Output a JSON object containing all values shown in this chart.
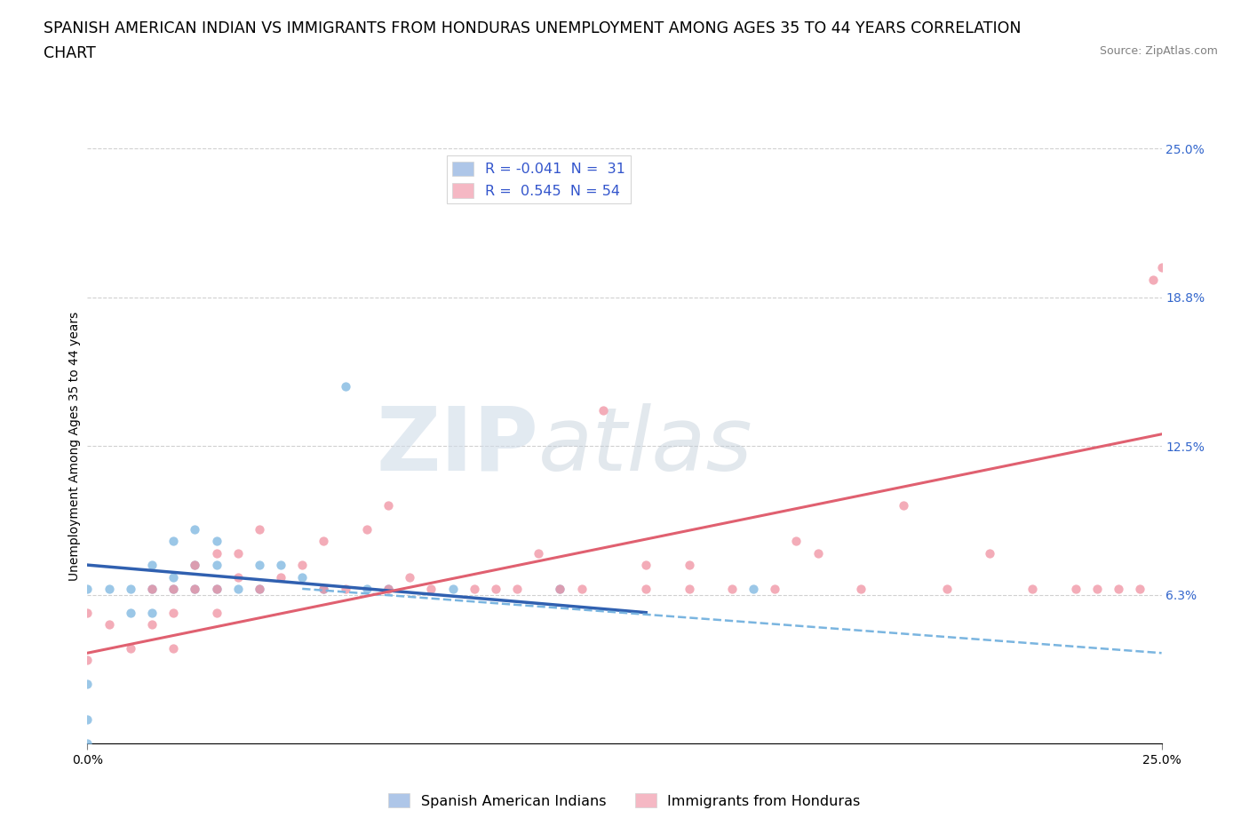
{
  "title_line1": "SPANISH AMERICAN INDIAN VS IMMIGRANTS FROM HONDURAS UNEMPLOYMENT AMONG AGES 35 TO 44 YEARS CORRELATION",
  "title_line2": "CHART",
  "source_text": "Source: ZipAtlas.com",
  "ylabel": "Unemployment Among Ages 35 to 44 years",
  "xlim": [
    0.0,
    0.25
  ],
  "ylim": [
    0.0,
    0.25
  ],
  "ytick_values": [
    0.0625,
    0.125,
    0.1875,
    0.25
  ],
  "ytick_labels": [
    "6.3%",
    "12.5%",
    "18.8%",
    "25.0%"
  ],
  "xtick_values": [
    0.0,
    0.25
  ],
  "xtick_labels": [
    "0.0%",
    "25.0%"
  ],
  "legend_entries": [
    {
      "label": "R = -0.041  N =  31",
      "color": "#aec6e8"
    },
    {
      "label": "R =  0.545  N = 54",
      "color": "#f5b8c4"
    }
  ],
  "legend_bottom": [
    "Spanish American Indians",
    "Immigrants from Honduras"
  ],
  "legend_colors_bottom": [
    "#aec6e8",
    "#f5b8c4"
  ],
  "watermark_zip": "ZIP",
  "watermark_atlas": "atlas",
  "blue_scatter_x": [
    0.0,
    0.0,
    0.0,
    0.0,
    0.005,
    0.01,
    0.01,
    0.015,
    0.015,
    0.015,
    0.02,
    0.02,
    0.02,
    0.025,
    0.025,
    0.025,
    0.03,
    0.03,
    0.03,
    0.035,
    0.04,
    0.04,
    0.045,
    0.05,
    0.055,
    0.06,
    0.065,
    0.07,
    0.085,
    0.11,
    0.155
  ],
  "blue_scatter_y": [
    0.0,
    0.01,
    0.025,
    0.065,
    0.065,
    0.055,
    0.065,
    0.055,
    0.065,
    0.075,
    0.065,
    0.07,
    0.085,
    0.065,
    0.075,
    0.09,
    0.065,
    0.075,
    0.085,
    0.065,
    0.065,
    0.075,
    0.075,
    0.07,
    0.065,
    0.15,
    0.065,
    0.065,
    0.065,
    0.065,
    0.065
  ],
  "pink_scatter_x": [
    0.0,
    0.0,
    0.005,
    0.01,
    0.015,
    0.015,
    0.02,
    0.02,
    0.02,
    0.025,
    0.025,
    0.03,
    0.03,
    0.03,
    0.035,
    0.035,
    0.04,
    0.04,
    0.045,
    0.05,
    0.055,
    0.055,
    0.06,
    0.065,
    0.07,
    0.07,
    0.075,
    0.08,
    0.09,
    0.095,
    0.1,
    0.105,
    0.11,
    0.115,
    0.12,
    0.13,
    0.13,
    0.14,
    0.14,
    0.15,
    0.16,
    0.165,
    0.17,
    0.18,
    0.19,
    0.2,
    0.21,
    0.22,
    0.23,
    0.235,
    0.24,
    0.245,
    0.248,
    0.25
  ],
  "pink_scatter_y": [
    0.035,
    0.055,
    0.05,
    0.04,
    0.05,
    0.065,
    0.04,
    0.055,
    0.065,
    0.065,
    0.075,
    0.055,
    0.065,
    0.08,
    0.07,
    0.08,
    0.065,
    0.09,
    0.07,
    0.075,
    0.065,
    0.085,
    0.065,
    0.09,
    0.1,
    0.065,
    0.07,
    0.065,
    0.065,
    0.065,
    0.065,
    0.08,
    0.065,
    0.065,
    0.14,
    0.065,
    0.075,
    0.065,
    0.075,
    0.065,
    0.065,
    0.085,
    0.08,
    0.065,
    0.1,
    0.065,
    0.08,
    0.065,
    0.065,
    0.065,
    0.065,
    0.065,
    0.195,
    0.2
  ],
  "blue_solid_line": {
    "x": [
      0.0,
      0.13
    ],
    "y": [
      0.075,
      0.055
    ]
  },
  "blue_dashed_line": {
    "x": [
      0.05,
      0.25
    ],
    "y": [
      0.065,
      0.038
    ]
  },
  "pink_solid_line": {
    "x": [
      0.0,
      0.25
    ],
    "y": [
      0.038,
      0.13
    ]
  },
  "grid_color": "#d0d0d0",
  "scatter_blue_color": "#7ab5e0",
  "scatter_pink_color": "#f090a0",
  "line_blue_solid_color": "#3060b0",
  "line_blue_dashed_color": "#7ab5e0",
  "line_pink_solid_color": "#e06070",
  "background_color": "#ffffff",
  "title_fontsize": 12.5,
  "axis_label_fontsize": 10,
  "tick_fontsize": 10,
  "legend_fontsize": 11.5
}
